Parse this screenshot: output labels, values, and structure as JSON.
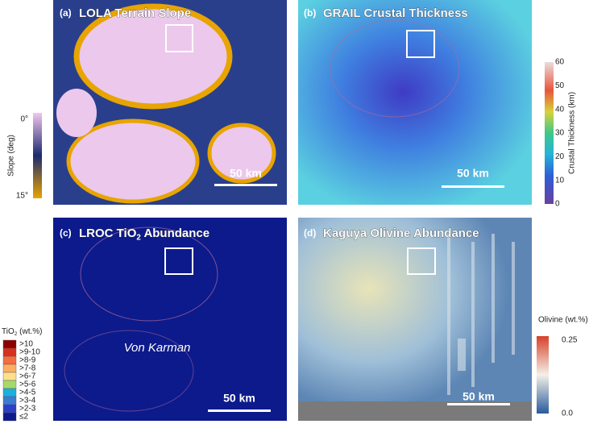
{
  "panels": [
    {
      "label": "(a)",
      "title": [
        "LOLA Terrain Slope"
      ],
      "scale_bar": "50 km"
    },
    {
      "label": "(b)",
      "title": [
        "GRAIL Crustal Thickness"
      ],
      "scale_bar": "50 km"
    },
    {
      "label": "(c)",
      "title": [
        "LROC TiO",
        "2",
        " Abundance"
      ],
      "scale_bar": "50 km",
      "annotation": "Von Karman"
    },
    {
      "label": "(d)",
      "title": [
        "Kaguya Olivine Abundance"
      ],
      "scale_bar": "50 km"
    }
  ],
  "colorbars": {
    "slope": {
      "label": "Slope (deg)",
      "ticks": [
        "0°",
        "15°"
      ]
    },
    "crust": {
      "label": "Crustal Thickness (km)",
      "ticks": [
        "60",
        "50",
        "40",
        "30",
        "20",
        "10",
        "0"
      ]
    },
    "tio2": {
      "title": [
        "TiO",
        "2",
        " (wt.%)"
      ],
      "entries": [
        ">10",
        ">9-10",
        ">8-9",
        ">7-8",
        ">6-7",
        ">5-6",
        ">4-5",
        ">3-4",
        ">2-3",
        "≤2"
      ]
    },
    "olivine": {
      "label": "Olivine (wt.%)",
      "ticks": [
        "0.25",
        "0.0"
      ]
    }
  }
}
